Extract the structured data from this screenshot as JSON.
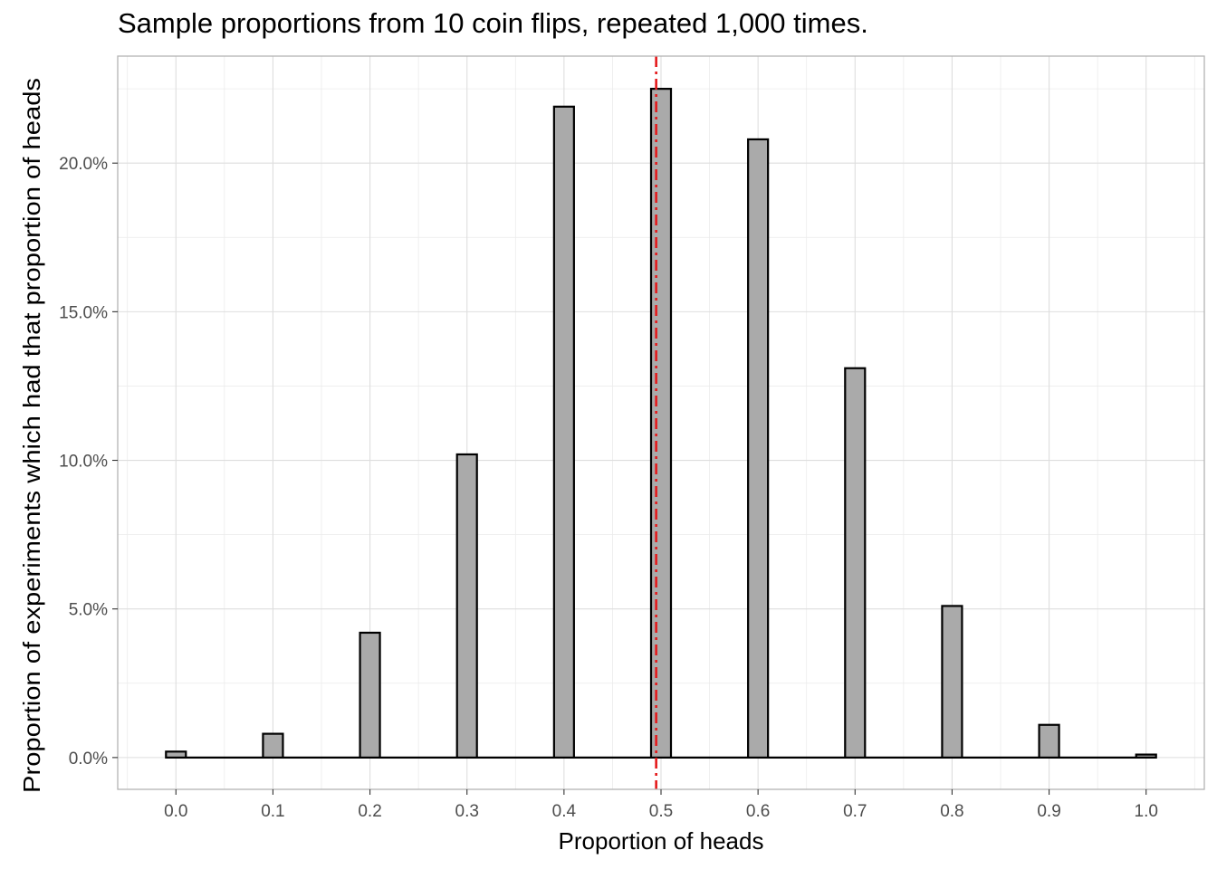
{
  "chart_data": {
    "type": "bar",
    "title": "Sample proportions from 10 coin flips, repeated 1,000 times.",
    "xlabel": "Proportion of heads",
    "ylabel": "Proportion of experiments which had that proportion of heads",
    "x": [
      0.0,
      0.1,
      0.2,
      0.3,
      0.4,
      0.5,
      0.6,
      0.7,
      0.8,
      0.9,
      1.0
    ],
    "values": [
      0.002,
      0.008,
      0.042,
      0.102,
      0.219,
      0.225,
      0.208,
      0.131,
      0.051,
      0.011,
      0.001
    ],
    "xlim": [
      -0.06,
      1.06
    ],
    "ylim": [
      -0.0107,
      0.236
    ],
    "x_ticks": [
      "0.0",
      "0.1",
      "0.2",
      "0.3",
      "0.4",
      "0.5",
      "0.6",
      "0.7",
      "0.8",
      "0.9",
      "1.0"
    ],
    "y_ticks": [
      "0.0%",
      "5.0%",
      "10.0%",
      "15.0%",
      "20.0%"
    ],
    "y_tick_values": [
      0,
      0.05,
      0.1,
      0.15,
      0.2
    ],
    "reference_line": {
      "x": 0.495,
      "color": "#e41a1c",
      "style": "dashed"
    },
    "bar_fill": "#aaaaaa",
    "bar_stroke": "#000000",
    "grid": true,
    "legend": "none"
  }
}
